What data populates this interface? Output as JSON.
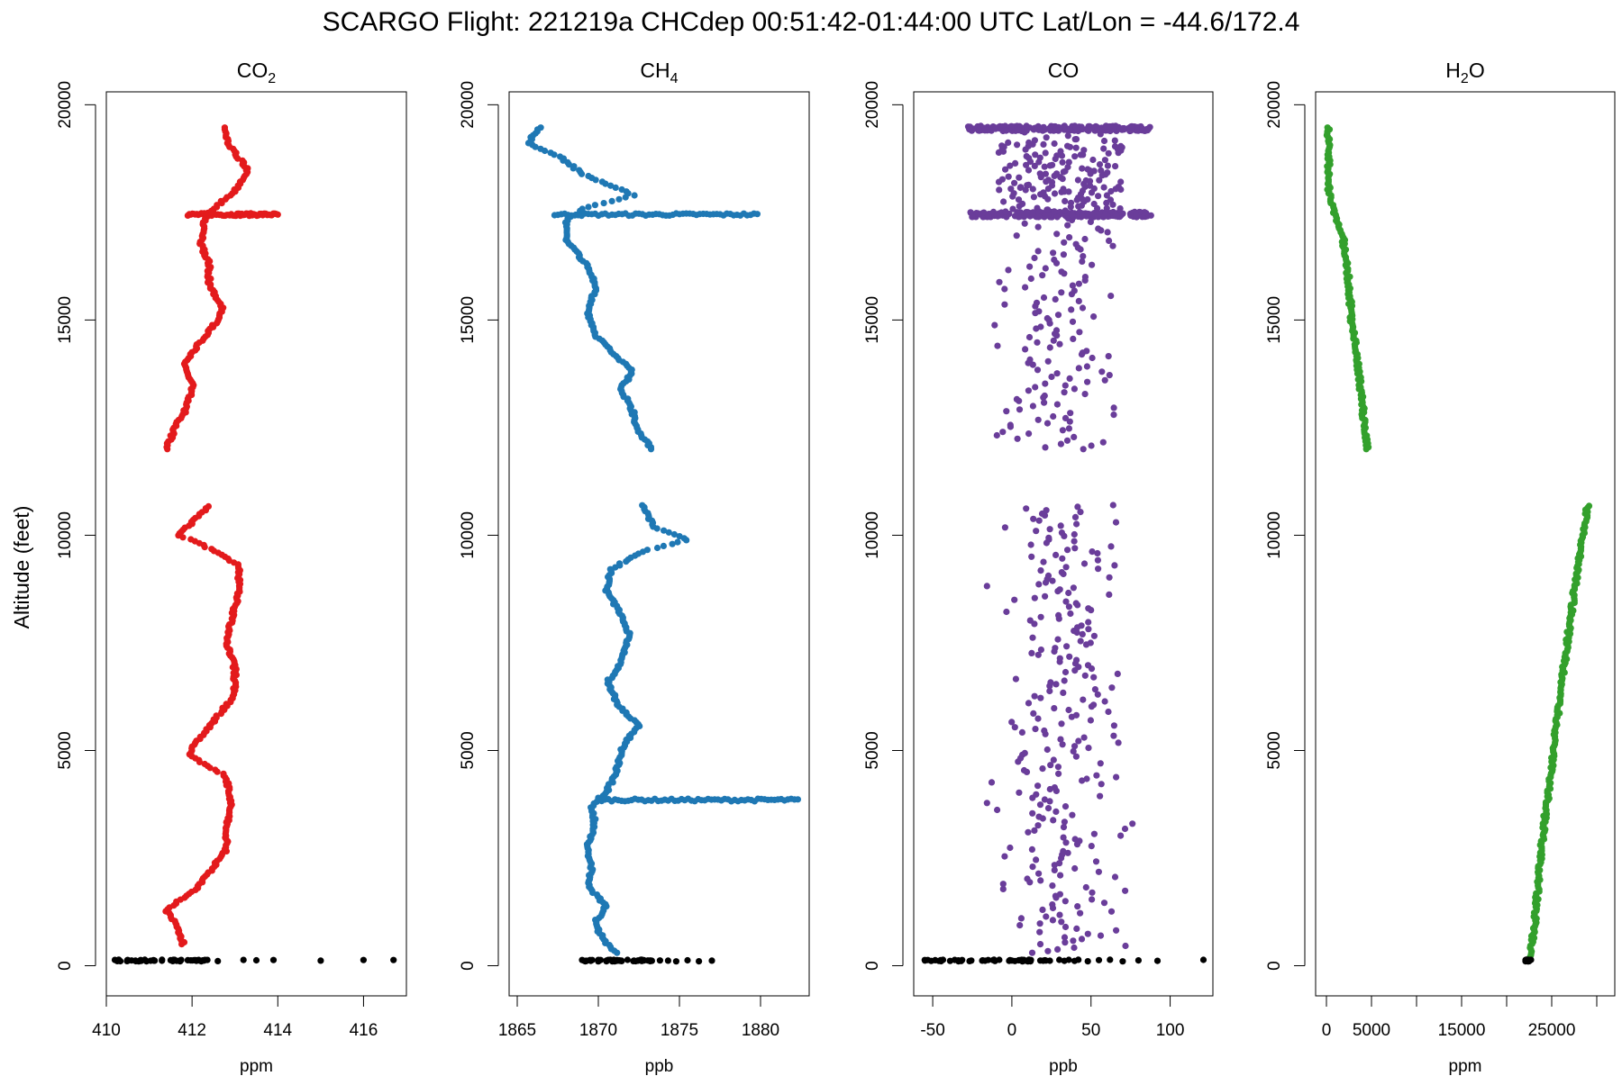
{
  "title": "SCARGO Flight: 221219a  CHCdep  00:51:42-01:44:00 UTC  Lat/Lon = -44.6/172.4",
  "ylabel": "Altitude (feet)",
  "chart_data": [
    {
      "type": "scatter",
      "title_main": "CO",
      "title_sub": "2",
      "xlabel": "ppm",
      "color": "#e31a1c",
      "xlim": [
        410,
        417
      ],
      "ylim": [
        -700,
        20300
      ],
      "xticks": [
        410,
        412,
        414,
        416
      ],
      "xtick_labels": [
        "410",
        "412",
        "414",
        "416"
      ],
      "yticks": [
        0,
        5000,
        10000,
        15000,
        20000
      ],
      "ytick_labels": [
        "0",
        "5000",
        "10000",
        "15000",
        "20000"
      ],
      "grid": false,
      "series": [
        {
          "profile": [
            [
              500,
              411.8
            ],
            [
              1000,
              411.6
            ],
            [
              1300,
              411.4
            ],
            [
              1800,
              412.1
            ],
            [
              2300,
              412.5
            ],
            [
              2700,
              412.8
            ],
            [
              3200,
              412.8
            ],
            [
              3800,
              412.9
            ],
            [
              4400,
              412.8
            ],
            [
              4900,
              411.9
            ],
            [
              5300,
              412.2
            ],
            [
              5800,
              412.6
            ],
            [
              6300,
              413.0
            ],
            [
              6900,
              413.0
            ],
            [
              7500,
              412.8
            ],
            [
              8000,
              412.9
            ],
            [
              8700,
              413.1
            ],
            [
              9300,
              413.1
            ],
            [
              9800,
              412.2
            ],
            [
              10000,
              411.7
            ],
            [
              10400,
              412.1
            ],
            [
              10700,
              412.4
            ]
          ],
          "profile2": [
            [
              12000,
              411.4
            ],
            [
              12500,
              411.6
            ],
            [
              13000,
              411.9
            ],
            [
              13500,
              412.0
            ],
            [
              14000,
              411.8
            ],
            [
              14500,
              412.2
            ],
            [
              15000,
              412.6
            ],
            [
              15300,
              412.7
            ],
            [
              15800,
              412.4
            ],
            [
              16300,
              412.4
            ],
            [
              16800,
              412.2
            ],
            [
              17300,
              412.3
            ],
            [
              17500,
              412.4
            ],
            [
              18000,
              413.0
            ],
            [
              18500,
              413.3
            ],
            [
              19000,
              412.9
            ],
            [
              19300,
              412.8
            ],
            [
              19500,
              412.8
            ]
          ],
          "spike": {
            "alt": 17450,
            "from": 411.9,
            "to": 414.0
          },
          "ground": [
            410.2,
            410.5,
            410.8,
            411.1,
            411.3,
            411.5,
            411.7,
            411.9,
            412.1,
            412.3,
            412.6,
            413.2,
            413.5,
            413.9,
            415.0,
            416.0,
            416.7
          ]
        }
      ]
    },
    {
      "type": "scatter",
      "title_main": "CH",
      "title_sub": "4",
      "xlabel": "ppb",
      "color": "#1f78b4",
      "xlim": [
        1864.5,
        1883
      ],
      "ylim": [
        -700,
        20300
      ],
      "xticks": [
        1865,
        1870,
        1875,
        1880
      ],
      "xtick_labels": [
        "1865",
        "1870",
        "1875",
        "1880"
      ],
      "yticks": [
        0,
        5000,
        10000,
        15000,
        20000
      ],
      "ytick_labels": [
        "0",
        "5000",
        "10000",
        "15000",
        "20000"
      ],
      "grid": false,
      "series": [
        {
          "profile": [
            [
              300,
              1871.1
            ],
            [
              600,
              1870.3
            ],
            [
              1000,
              1869.8
            ],
            [
              1400,
              1870.5
            ],
            [
              1800,
              1869.4
            ],
            [
              2300,
              1869.6
            ],
            [
              2800,
              1869.3
            ],
            [
              3300,
              1869.8
            ],
            [
              3700,
              1869.6
            ],
            [
              4100,
              1870.6
            ],
            [
              4600,
              1871.2
            ],
            [
              5100,
              1871.5
            ],
            [
              5600,
              1872.5
            ],
            [
              6000,
              1871.3
            ],
            [
              6600,
              1870.6
            ],
            [
              7100,
              1871.5
            ],
            [
              7700,
              1871.9
            ],
            [
              8200,
              1871.3
            ],
            [
              8700,
              1870.5
            ],
            [
              9200,
              1870.8
            ],
            [
              9600,
              1872.5
            ],
            [
              9900,
              1875.6
            ],
            [
              10200,
              1873.4
            ],
            [
              10700,
              1872.8
            ]
          ],
          "profile2": [
            [
              12000,
              1873.3
            ],
            [
              12400,
              1872.5
            ],
            [
              12900,
              1872.1
            ],
            [
              13400,
              1871.4
            ],
            [
              13800,
              1872.1
            ],
            [
              14200,
              1871.0
            ],
            [
              14700,
              1869.7
            ],
            [
              15200,
              1869.4
            ],
            [
              15700,
              1869.8
            ],
            [
              16200,
              1869.5
            ],
            [
              16800,
              1868.1
            ],
            [
              17300,
              1868.0
            ],
            [
              17600,
              1869.2
            ],
            [
              17900,
              1872.2
            ],
            [
              18400,
              1869.0
            ],
            [
              18800,
              1867.6
            ],
            [
              19100,
              1865.6
            ],
            [
              19500,
              1866.5
            ]
          ],
          "spike": {
            "alt": 17450,
            "from": 1867.3,
            "to": 1879.8
          },
          "spike2": {
            "alt": 3850,
            "from": 1870.0,
            "to": 1882.3
          },
          "ground": [
            1869.0,
            1869.5,
            1870.0,
            1870.5,
            1871.0,
            1871.3,
            1871.8,
            1872.3,
            1872.8,
            1873.3,
            1873.8,
            1874.3,
            1874.8,
            1875.5,
            1876.2,
            1877.0
          ]
        }
      ]
    },
    {
      "type": "scatter",
      "title_main": "CO",
      "title_sub": "",
      "xlabel": "ppb",
      "color": "#6a3d9a",
      "xlim": [
        -62,
        127
      ],
      "ylim": [
        -700,
        20300
      ],
      "xticks": [
        -50,
        0,
        50,
        100
      ],
      "xtick_labels": [
        "-50",
        "0",
        "50",
        "100"
      ],
      "yticks": [
        0,
        5000,
        10000,
        15000,
        20000
      ],
      "ytick_labels": [
        "0",
        "5000",
        "10000",
        "15000",
        "20000"
      ],
      "grid": false,
      "series": [
        {
          "center": 30,
          "spread": 28,
          "dense_bands": [
            17450,
            19450
          ],
          "band_range": [
            -28,
            88
          ],
          "ground": [
            -55,
            -32,
            -15,
            -8,
            0,
            5,
            12,
            18,
            24,
            30,
            36,
            42,
            48,
            55,
            62,
            70,
            80,
            92,
            121
          ]
        }
      ]
    },
    {
      "type": "scatter",
      "title_main": "H",
      "title_sub": "2",
      "title_tail": "O",
      "xlabel": "ppm",
      "color": "#33a02c",
      "xlim": [
        -1200,
        32000
      ],
      "ylim": [
        -700,
        20300
      ],
      "xticks": [
        0,
        5000,
        10000,
        15000,
        20000,
        25000,
        30000
      ],
      "xtick_labels": [
        "0",
        "5000",
        "",
        "15000",
        "",
        "25000",
        ""
      ],
      "yticks": [
        0,
        5000,
        10000,
        15000,
        20000
      ],
      "ytick_labels": [
        "0",
        "5000",
        "10000",
        "15000",
        "20000"
      ],
      "grid": false,
      "series": [
        {
          "profile": [
            [
              150,
              22600
            ],
            [
              1000,
              23100
            ],
            [
              3000,
              24000
            ],
            [
              5000,
              25200
            ],
            [
              7000,
              26400
            ],
            [
              9000,
              27700
            ],
            [
              10000,
              28400
            ],
            [
              10700,
              29000
            ]
          ],
          "profile2": [
            [
              12000,
              4500
            ],
            [
              13000,
              4000
            ],
            [
              14000,
              3500
            ],
            [
              15000,
              2800
            ],
            [
              16000,
              2400
            ],
            [
              17000,
              1800
            ],
            [
              17450,
              1000
            ],
            [
              18000,
              300
            ],
            [
              19000,
              200
            ],
            [
              19500,
              250
            ]
          ],
          "ground": [
            22100,
            22300,
            22500,
            22700
          ]
        }
      ]
    }
  ]
}
